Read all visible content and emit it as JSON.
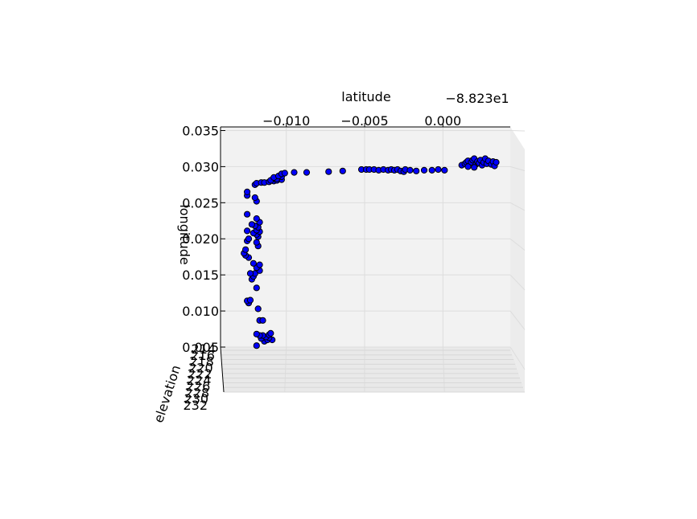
{
  "chart_data": {
    "type": "scatter",
    "projection": "3d",
    "title": "",
    "xlabel": "latitude",
    "ylabel": "longitude",
    "zlabel": "elevation",
    "x_offset_label": "−8.823e1",
    "x_ticks": [
      "−0.010",
      "−0.005",
      "0.000"
    ],
    "x_tick_values": [
      -0.01,
      -0.005,
      0.0
    ],
    "y_ticks": [
      "0.005",
      "0.010",
      "0.015",
      "0.020",
      "0.025",
      "0.030",
      "0.035"
    ],
    "y_tick_values": [
      0.005,
      0.01,
      0.015,
      0.02,
      0.025,
      0.03,
      0.035
    ],
    "z_ticks": [
      "214",
      "216",
      "218",
      "220",
      "222",
      "224",
      "226",
      "228",
      "230",
      "232"
    ],
    "xlim": [
      -0.0142,
      0.0043
    ],
    "ylim": [
      0.005,
      0.0355
    ],
    "grid": true,
    "marker_color": "#0000ff",
    "marker_edge": "#000000",
    "pane_color": "#f2f2f2",
    "points": [
      [
        -0.0119,
        0.0052
      ],
      [
        -0.0114,
        0.0058
      ],
      [
        -0.0112,
        0.006
      ],
      [
        -0.0109,
        0.006
      ],
      [
        -0.0116,
        0.0062
      ],
      [
        -0.0111,
        0.0063
      ],
      [
        -0.0113,
        0.0064
      ],
      [
        -0.0115,
        0.0066
      ],
      [
        -0.0117,
        0.0066
      ],
      [
        -0.0111,
        0.0067
      ],
      [
        -0.0119,
        0.0068
      ],
      [
        -0.011,
        0.0069
      ],
      [
        -0.0117,
        0.0087
      ],
      [
        -0.0115,
        0.0087
      ],
      [
        -0.0118,
        0.0103
      ],
      [
        -0.0124,
        0.0111
      ],
      [
        -0.0125,
        0.0114
      ],
      [
        -0.0123,
        0.0115
      ],
      [
        -0.0119,
        0.0132
      ],
      [
        -0.0122,
        0.0144
      ],
      [
        -0.0121,
        0.0148
      ],
      [
        -0.012,
        0.0152
      ],
      [
        -0.0123,
        0.0152
      ],
      [
        -0.0117,
        0.0156
      ],
      [
        -0.0119,
        0.016
      ],
      [
        -0.0117,
        0.0164
      ],
      [
        -0.0121,
        0.0166
      ],
      [
        -0.0124,
        0.0174
      ],
      [
        -0.0126,
        0.0177
      ],
      [
        -0.0127,
        0.018
      ],
      [
        -0.0126,
        0.0185
      ],
      [
        -0.0118,
        0.019
      ],
      [
        -0.0119,
        0.0195
      ],
      [
        -0.0125,
        0.0197
      ],
      [
        -0.0124,
        0.02
      ],
      [
        -0.0118,
        0.0203
      ],
      [
        -0.0119,
        0.0206
      ],
      [
        -0.0121,
        0.0208
      ],
      [
        -0.0117,
        0.021
      ],
      [
        -0.0125,
        0.0211
      ],
      [
        -0.0119,
        0.0212
      ],
      [
        -0.0118,
        0.0216
      ],
      [
        -0.012,
        0.0218
      ],
      [
        -0.0122,
        0.022
      ],
      [
        -0.0117,
        0.0223
      ],
      [
        -0.0119,
        0.0228
      ],
      [
        -0.0125,
        0.0234
      ],
      [
        -0.0119,
        0.0252
      ],
      [
        -0.012,
        0.0257
      ],
      [
        -0.0125,
        0.026
      ],
      [
        -0.0125,
        0.0265
      ],
      [
        -0.012,
        0.0275
      ],
      [
        -0.0119,
        0.0277
      ],
      [
        -0.0116,
        0.0278
      ],
      [
        -0.0114,
        0.0278
      ],
      [
        -0.0111,
        0.0279
      ],
      [
        -0.0108,
        0.028
      ],
      [
        -0.0106,
        0.0281
      ],
      [
        -0.011,
        0.0281
      ],
      [
        -0.0103,
        0.0282
      ],
      [
        -0.0106,
        0.0283
      ],
      [
        -0.0108,
        0.0285
      ],
      [
        -0.0103,
        0.0286
      ],
      [
        -0.0105,
        0.0287
      ],
      [
        -0.0103,
        0.029
      ],
      [
        -0.0101,
        0.0291
      ],
      [
        -0.0095,
        0.0292
      ],
      [
        -0.0087,
        0.0292
      ],
      [
        -0.0073,
        0.0293
      ],
      [
        -0.0064,
        0.0294
      ],
      [
        -0.0052,
        0.0296
      ],
      [
        -0.0049,
        0.0296
      ],
      [
        -0.0047,
        0.0296
      ],
      [
        -0.0044,
        0.0296
      ],
      [
        -0.0041,
        0.0295
      ],
      [
        -0.0038,
        0.0296
      ],
      [
        -0.0035,
        0.0295
      ],
      [
        -0.0033,
        0.0296
      ],
      [
        -0.0031,
        0.0295
      ],
      [
        -0.0029,
        0.0296
      ],
      [
        -0.0027,
        0.0294
      ],
      [
        -0.0025,
        0.0293
      ],
      [
        -0.0024,
        0.0296
      ],
      [
        -0.0021,
        0.0295
      ],
      [
        -0.0017,
        0.0294
      ],
      [
        -0.0012,
        0.0295
      ],
      [
        -0.0007,
        0.0295
      ],
      [
        -0.0003,
        0.0296
      ],
      [
        0.0001,
        0.0295
      ],
      [
        0.0012,
        0.0302
      ],
      [
        0.0014,
        0.0304
      ],
      [
        0.0015,
        0.0306
      ],
      [
        0.0016,
        0.0308
      ],
      [
        0.0018,
        0.0306
      ],
      [
        0.0019,
        0.0309
      ],
      [
        0.002,
        0.0311
      ],
      [
        0.0021,
        0.0303
      ],
      [
        0.0022,
        0.0307
      ],
      [
        0.0023,
        0.0305
      ],
      [
        0.0024,
        0.0309
      ],
      [
        0.0025,
        0.0302
      ],
      [
        0.0026,
        0.0306
      ],
      [
        0.0027,
        0.0311
      ],
      [
        0.0028,
        0.0304
      ],
      [
        0.0029,
        0.0308
      ],
      [
        0.0031,
        0.0303
      ],
      [
        0.0032,
        0.0307
      ],
      [
        0.0033,
        0.0301
      ],
      [
        0.0034,
        0.0306
      ],
      [
        0.0016,
        0.03
      ],
      [
        0.002,
        0.0299
      ]
    ]
  }
}
